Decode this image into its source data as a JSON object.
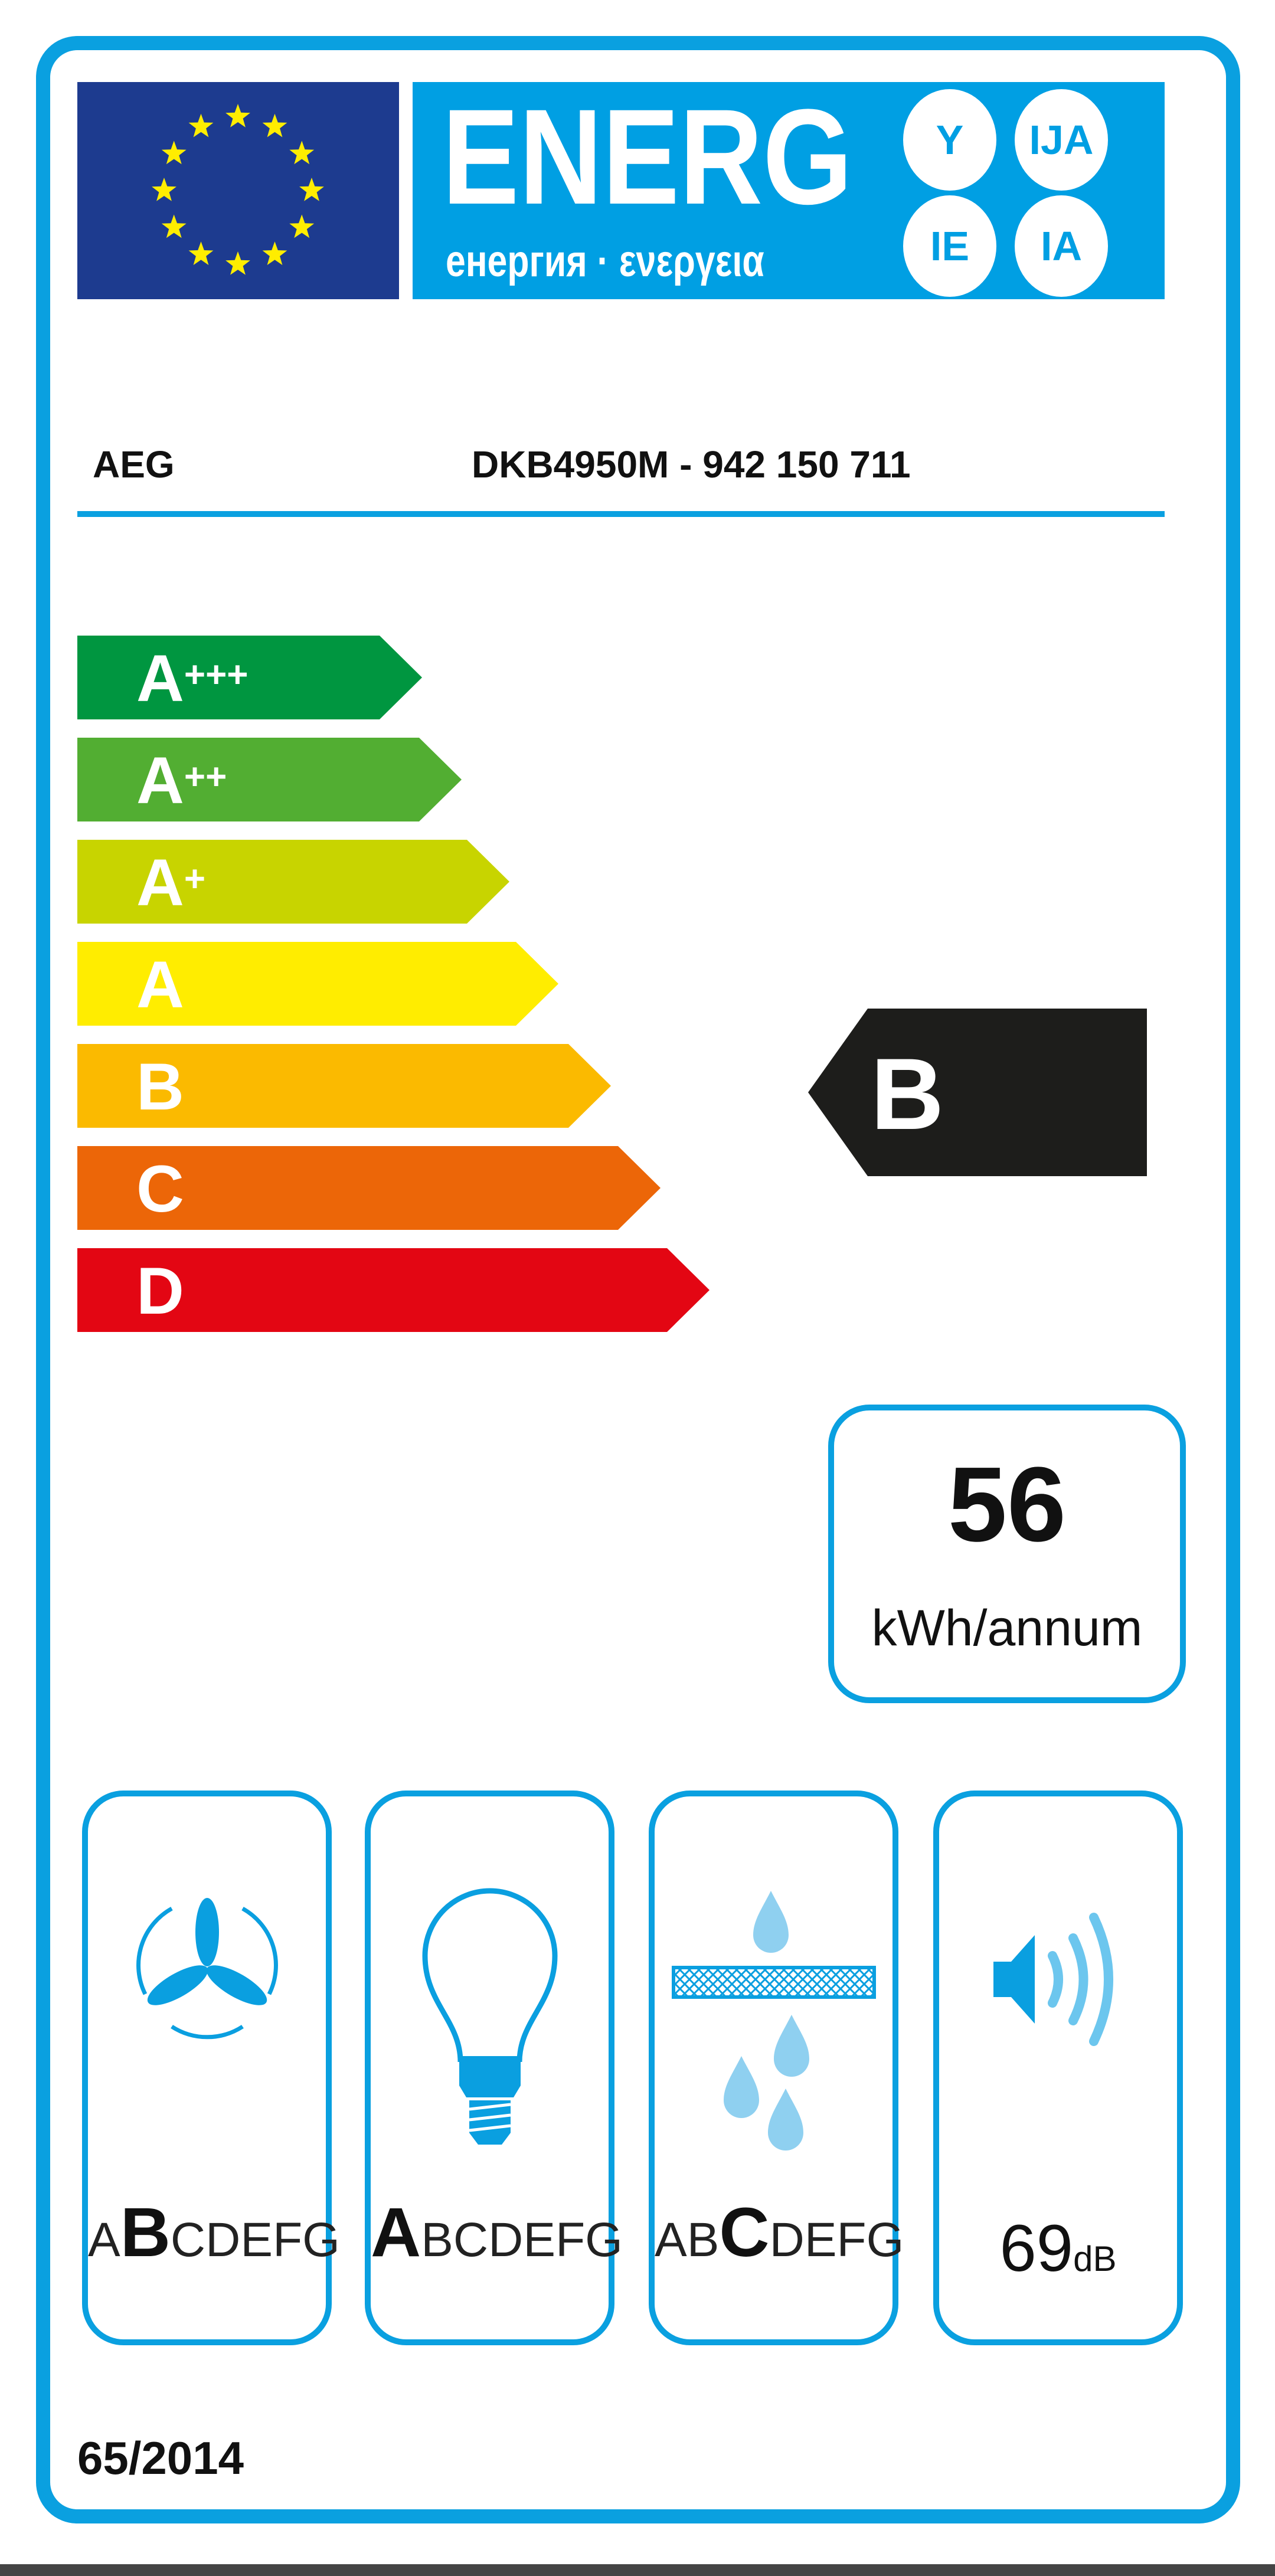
{
  "header": {
    "energy_word": "ENERG",
    "energy_subtitle": "енергия · ενεργεια",
    "language_suffixes": [
      "Y",
      "IJA",
      "IE",
      "IA"
    ],
    "flag": "eu-flag"
  },
  "product": {
    "brand": "AEG",
    "model": "DKB4950M - 942 150 711"
  },
  "energy_scale": {
    "classes": [
      {
        "label": "A",
        "sup": "+++",
        "color": "#009640"
      },
      {
        "label": "A",
        "sup": "++",
        "color": "#52ae32"
      },
      {
        "label": "A",
        "sup": "+",
        "color": "#c8d400"
      },
      {
        "label": "A",
        "sup": "",
        "color": "#ffed00"
      },
      {
        "label": "B",
        "sup": "",
        "color": "#fbba00"
      },
      {
        "label": "C",
        "sup": "",
        "color": "#ec6608"
      },
      {
        "label": "D",
        "sup": "",
        "color": "#e30613"
      }
    ],
    "rating": "B",
    "rating_index": 4,
    "rating_color": "#1d1d1b"
  },
  "consumption": {
    "value": "56",
    "unit": "kWh/annum"
  },
  "performance": [
    {
      "icon": "fan-icon",
      "scale": "ABCDEFG",
      "selected": "B"
    },
    {
      "icon": "lightbulb-icon",
      "scale": "ABCDEFG",
      "selected": "A"
    },
    {
      "icon": "grease-filter-icon",
      "scale": "ABCDEFG",
      "selected": "C"
    }
  ],
  "noise": {
    "icon": "speaker-icon",
    "value": "69",
    "unit": "dB"
  },
  "regulation": "65/2014",
  "colors": {
    "accent": "#009fe3",
    "flag_blue": "#1d3b8f",
    "star_yellow": "#ffed00"
  }
}
